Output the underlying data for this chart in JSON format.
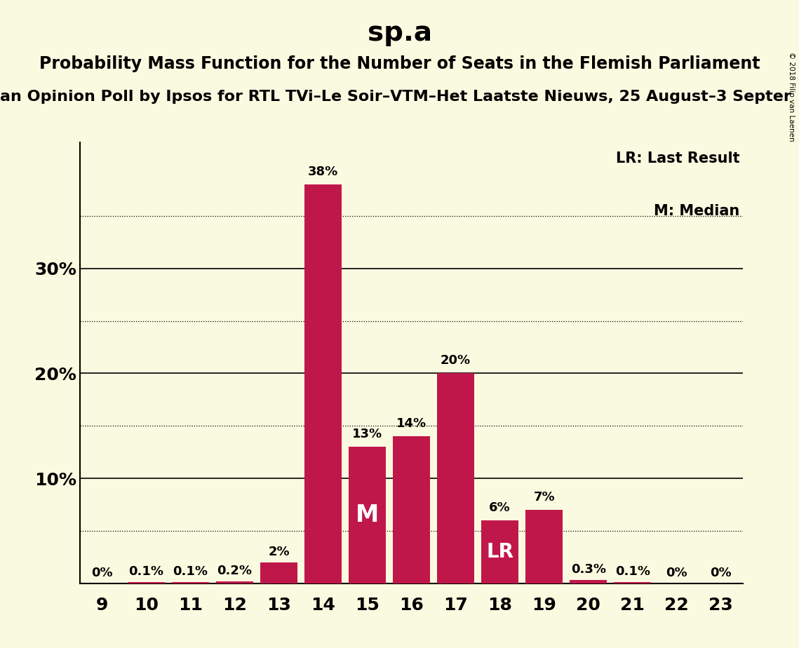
{
  "title": "sp.a",
  "subtitle": "Probability Mass Function for the Number of Seats in the Flemish Parliament",
  "source_line": "an Opinion Poll by Ipsos for RTL TVi–Le Soir–VTM–Het Laatste Nieuws, 25 August–3 Septer",
  "copyright": "© 2018 Filip van Laenen",
  "seats": [
    9,
    10,
    11,
    12,
    13,
    14,
    15,
    16,
    17,
    18,
    19,
    20,
    21,
    22,
    23
  ],
  "probabilities": [
    0.0,
    0.001,
    0.001,
    0.002,
    0.02,
    0.38,
    0.13,
    0.14,
    0.2,
    0.06,
    0.07,
    0.003,
    0.001,
    0.0,
    0.0
  ],
  "prob_labels": [
    "0%",
    "0.1%",
    "0.1%",
    "0.2%",
    "2%",
    "38%",
    "13%",
    "14%",
    "20%",
    "6%",
    "7%",
    "0.3%",
    "0.1%",
    "0%",
    "0%"
  ],
  "bar_color": "#C0174A",
  "background_color": "#FAFAE0",
  "median_seat": 15,
  "lr_seat": 18,
  "ylim": [
    0,
    0.42
  ],
  "yticks": [
    0.0,
    0.1,
    0.2,
    0.3
  ],
  "ytick_labels": [
    "",
    "10%",
    "20%",
    "30%"
  ],
  "dotted_lines": [
    0.05,
    0.15,
    0.25,
    0.35
  ],
  "title_fontsize": 28,
  "subtitle_fontsize": 17,
  "source_fontsize": 16,
  "bar_label_fontsize": 13,
  "axis_label_fontsize": 18,
  "annotation_fontsize": 24,
  "legend_fontsize": 15
}
